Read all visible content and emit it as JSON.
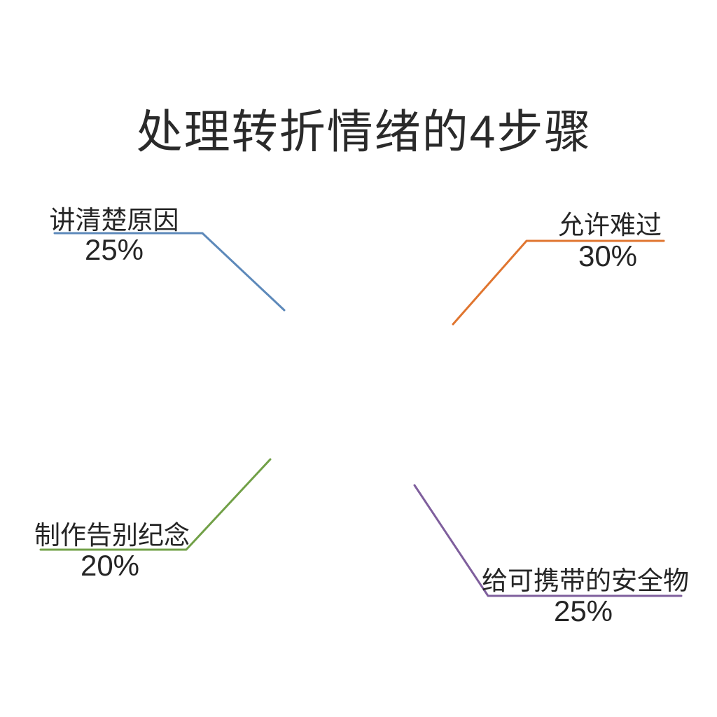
{
  "page_title": "处理转折情绪的4步骤",
  "chart_data": {
    "type": "pie",
    "title": "处理转折情绪的4步骤",
    "start_angle_deg": 0,
    "direction": "clockwise",
    "legend_position": "callout-labels",
    "background": "#ffffff",
    "text_color": "#2a2a2a",
    "segments": [
      {
        "key": "orange",
        "label": "允许难过",
        "pct": 30,
        "pct_label": "30%",
        "color": "#f49a52",
        "border": "#e0752f"
      },
      {
        "key": "purple",
        "label": "给可携带的安全物",
        "pct": 25,
        "pct_label": "25%",
        "color": "#9e82b8",
        "border": "#7f5f9d"
      },
      {
        "key": "green",
        "label": "制作告别纪念",
        "pct": 20,
        "pct_label": "20%",
        "color": "#93bd68",
        "border": "#71a047"
      },
      {
        "key": "blue",
        "label": "讲清楚原因",
        "pct": 25,
        "pct_label": "25%",
        "color": "#85aed6",
        "border": "#5d89ba"
      }
    ]
  }
}
